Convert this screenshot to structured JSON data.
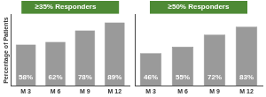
{
  "chart_data": [
    {
      "type": "bar",
      "title": "≥35% Responders",
      "ylabel": "Percentage of Patients",
      "categories": [
        "M 3",
        "M 6",
        "M 9",
        "M 12"
      ],
      "values": [
        58,
        62,
        78,
        89
      ],
      "value_labels": [
        "58%",
        "62%",
        "78%",
        "89%"
      ],
      "data_labels": true,
      "color": "#9a9a9a",
      "ylim": [
        0,
        100
      ],
      "tick_labels": "x",
      "grid": false
    },
    {
      "type": "bar",
      "title": "≥50% Responders",
      "categories": [
        "M 3",
        "M 6",
        "M 9",
        "M 12"
      ],
      "values": [
        46,
        55,
        72,
        83
      ],
      "value_labels": [
        "46%",
        "55%",
        "72%",
        "83%"
      ],
      "data_labels": true,
      "color": "#9a9a9a",
      "ylim": [
        0,
        100
      ],
      "tick_labels": "x",
      "grid": false
    }
  ]
}
